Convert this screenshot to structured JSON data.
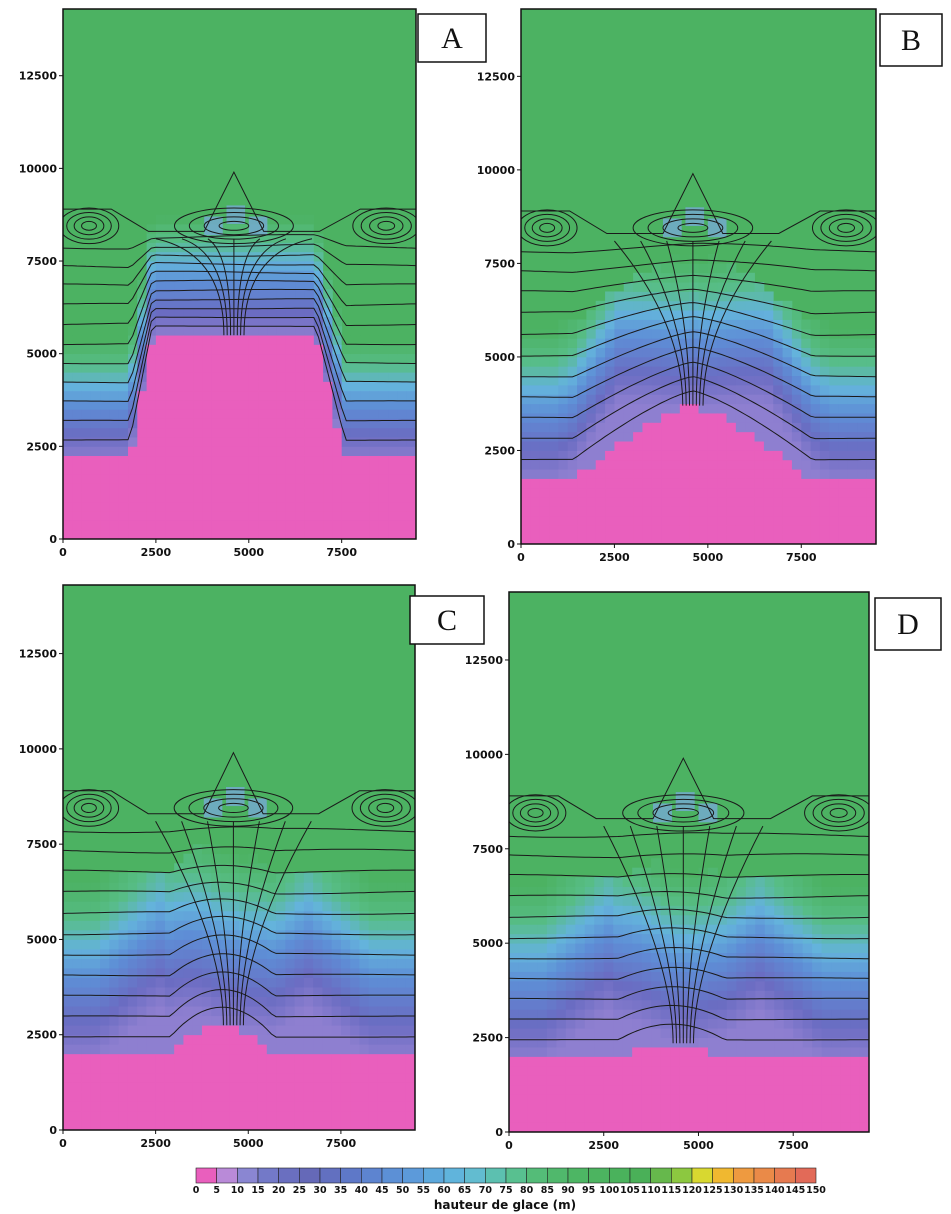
{
  "chart_data": [
    {
      "panel": "A",
      "type": "heatmap",
      "x_ticks": [
        "0",
        "2500",
        "5000",
        "7500"
      ],
      "y_ticks": [
        "0",
        "2500",
        "5000",
        "7500",
        "10000",
        "12500"
      ],
      "xlim": [
        0,
        9500
      ],
      "ylim": [
        0,
        14300
      ],
      "front_base_y": 2150,
      "front_peak_y": 5500,
      "transition_band": 3200,
      "blue_peak": 6300,
      "contours": true
    },
    {
      "panel": "B",
      "type": "heatmap",
      "x_ticks": [
        "0",
        "2500",
        "5000",
        "7500"
      ],
      "y_ticks": [
        "0",
        "2500",
        "5000",
        "7500",
        "10000",
        "12500"
      ],
      "xlim": [
        0,
        9500
      ],
      "ylim": [
        0,
        14300
      ],
      "front_base_y": 1700,
      "front_peak_y": 3700,
      "transition_band": 4000,
      "blue_peak": 5200,
      "contours": true
    },
    {
      "panel": "C",
      "type": "heatmap",
      "x_ticks": [
        "0",
        "2500",
        "5000",
        "7500"
      ],
      "y_ticks": [
        "0",
        "2500",
        "5000",
        "7500",
        "10000",
        "12500"
      ],
      "xlim": [
        0,
        9500
      ],
      "ylim": [
        0,
        14300
      ],
      "front_base_y": 1900,
      "front_peak_y": 2750,
      "transition_band": 4600,
      "blue_peak": 4500,
      "contours": true
    },
    {
      "panel": "D",
      "type": "heatmap",
      "x_ticks": [
        "0",
        "2500",
        "5000",
        "7500"
      ],
      "y_ticks": [
        "0",
        "2500",
        "5000",
        "7500",
        "10000",
        "12500"
      ],
      "xlim": [
        0,
        9500
      ],
      "ylim": [
        0,
        14300
      ],
      "front_base_y": 1900,
      "front_peak_y": 2350,
      "transition_band": 4600,
      "blue_peak": 4500,
      "contours": true
    }
  ],
  "colorbar": {
    "title": "hauteur de glace (m)",
    "labels": [
      "0",
      "5",
      "10",
      "15",
      "20",
      "25",
      "30",
      "35",
      "40",
      "45",
      "50",
      "55",
      "60",
      "65",
      "70",
      "75",
      "80",
      "85",
      "90",
      "95",
      "100",
      "105",
      "110",
      "115",
      "120",
      "125",
      "130",
      "135",
      "140",
      "145",
      "150"
    ],
    "colors": [
      "#e95fbd",
      "#b98ad8",
      "#8a86d2",
      "#7379c8",
      "#6a6fc0",
      "#6569b8",
      "#6270c0",
      "#5e78c8",
      "#5d84d0",
      "#5c90d6",
      "#5c9ada",
      "#5ca8dc",
      "#60b4dc",
      "#62bcd0",
      "#5cc0b0",
      "#58c090",
      "#54bc78",
      "#50b86c",
      "#4db664",
      "#4cb460",
      "#4ab25c",
      "#4ab058",
      "#66b84c",
      "#8cc840",
      "#d8d830",
      "#f0b830",
      "#ee9a40",
      "#ea8a48",
      "#e67a50",
      "#e26a58"
    ]
  }
}
